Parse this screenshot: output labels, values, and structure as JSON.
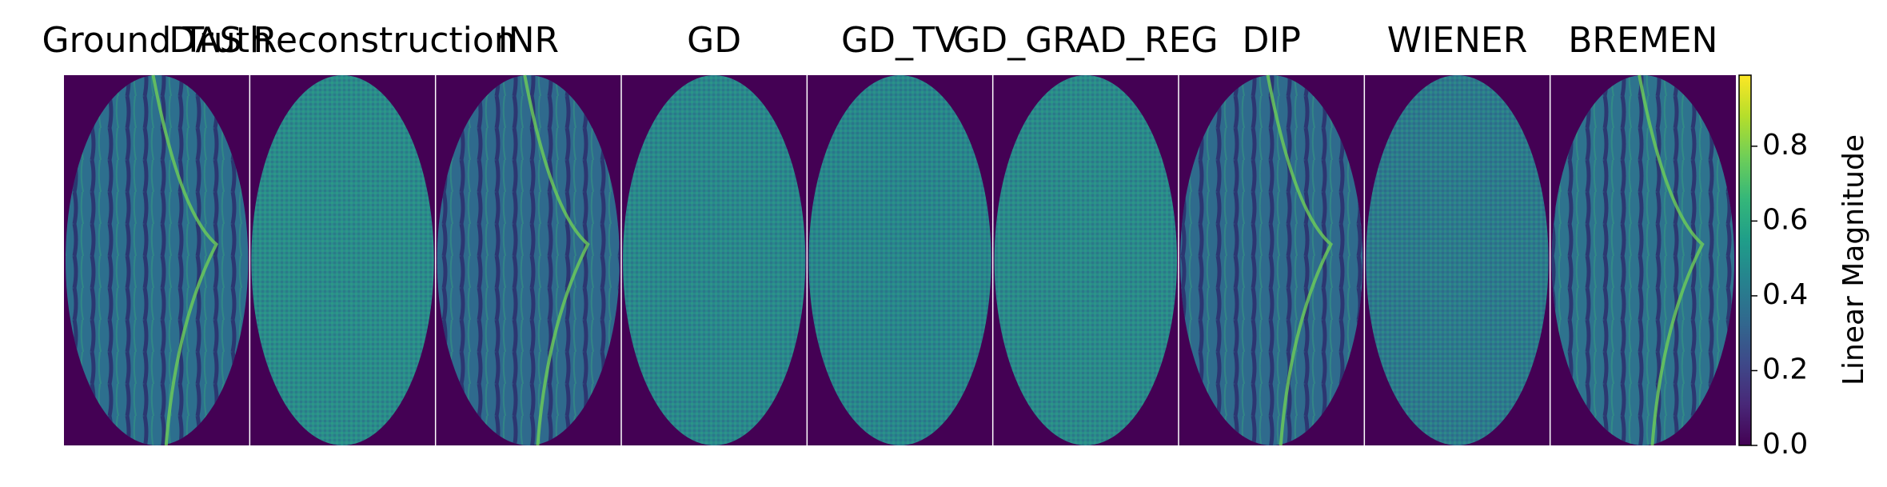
{
  "chart_data": {
    "type": "image_grid",
    "panels": [
      "Ground Truth",
      "DAS Reconstruction",
      "INR",
      "GD",
      "GD_TV",
      "GD_GRAD_REG",
      "DIP",
      "WIENER",
      "BREMEN"
    ],
    "colormap": "viridis",
    "colorbar": {
      "label": "Linear Magnitude",
      "lim": [
        0,
        0.99
      ],
      "ticks": [
        {
          "value": 0,
          "label": "0.0"
        },
        0.2,
        0.4,
        0.6,
        0.8
      ]
    }
  }
}
